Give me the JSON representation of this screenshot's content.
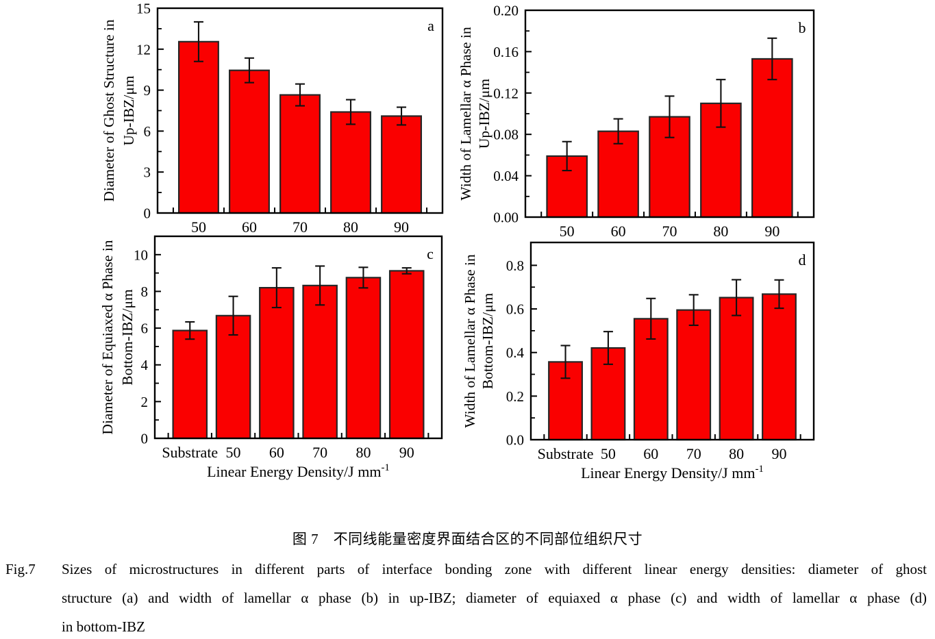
{
  "figure": {
    "caption_zh": "图 7　不同线能量密度界面结合区的不同部位组织尺寸",
    "caption_en_label": "Fig.7",
    "caption_en_lines": [
      "Sizes of microstructures in different parts of interface bonding zone with different linear energy densities: diameter of ghost",
      "structure (a) and width of lamellar α phase (b) in up-IBZ; diameter of equiaxed α phase (c) and width of lamellar α phase (d)",
      "in bottom-IBZ"
    ]
  },
  "colors": {
    "bar": "#fa0000",
    "bar_border": "#262626",
    "axis": "#000000",
    "error_bar": "#111111"
  },
  "chart_data": [
    {
      "panel": "a",
      "type": "bar",
      "ylabel": "Diameter of Ghost Structure in Up-IBZ/μm",
      "ylabel_lines": [
        "Diameter of Ghost Structure in",
        "Up-IBZ/μm"
      ],
      "categories": [
        "50",
        "60",
        "70",
        "80",
        "90"
      ],
      "values": [
        12.55,
        10.45,
        8.65,
        7.4,
        7.1
      ],
      "errors": [
        1.45,
        0.9,
        0.8,
        0.9,
        0.65
      ],
      "ylim": [
        0,
        15
      ],
      "yticks": [
        0,
        3,
        6,
        9,
        12,
        15
      ],
      "ytick_labels": [
        "0",
        "3",
        "6",
        "9",
        "12",
        "15"
      ],
      "xlabel": {
        "text": "",
        "sup": ""
      },
      "grid": false,
      "legend": false
    },
    {
      "panel": "b",
      "type": "bar",
      "ylabel": "Width of Lamellar α Phase in Up-IBZ/μm",
      "ylabel_lines": [
        "Width of Lamellar α Phase in",
        "Up-IBZ/μm"
      ],
      "categories": [
        "50",
        "60",
        "70",
        "80",
        "90"
      ],
      "values": [
        0.059,
        0.083,
        0.097,
        0.11,
        0.153
      ],
      "errors": [
        0.014,
        0.012,
        0.02,
        0.023,
        0.02
      ],
      "ylim": [
        0,
        0.2
      ],
      "yticks": [
        0,
        0.04,
        0.08,
        0.12,
        0.16,
        0.2
      ],
      "ytick_labels": [
        "0.00",
        "0.04",
        "0.08",
        "0.12",
        "0.16",
        "0.20"
      ],
      "xlabel": {
        "text": "",
        "sup": ""
      },
      "grid": false,
      "legend": false
    },
    {
      "panel": "c",
      "type": "bar",
      "ylabel": "Diameter of Equiaxed α Phase in Bottom-IBZ/μm",
      "ylabel_lines": [
        "Diameter of Equiaxed α Phase in",
        "Bottom-IBZ/μm"
      ],
      "categories": [
        "Substrate",
        "50",
        "60",
        "70",
        "80",
        "90"
      ],
      "values": [
        5.87,
        6.68,
        8.2,
        8.32,
        8.75,
        9.12
      ],
      "errors": [
        0.47,
        1.05,
        1.08,
        1.06,
        0.56,
        0.16
      ],
      "ylim": [
        0,
        11
      ],
      "yticks": [
        0,
        2,
        4,
        6,
        8,
        10
      ],
      "ytick_labels": [
        "0",
        "2",
        "4",
        "6",
        "8",
        "10"
      ],
      "xlabel": {
        "text": "Linear Energy Density/J mm",
        "sup": "-1"
      },
      "grid": false,
      "legend": false
    },
    {
      "panel": "d",
      "type": "bar",
      "ylabel": "Width of Lamellar α Phase in Bottom-IBZ/μm",
      "ylabel_lines": [
        "Width of Lamellar α Phase in",
        "Bottom-IBZ/μm"
      ],
      "categories": [
        "Substrate",
        "50",
        "60",
        "70",
        "80",
        "90"
      ],
      "values": [
        0.357,
        0.421,
        0.555,
        0.595,
        0.652,
        0.668
      ],
      "errors": [
        0.075,
        0.075,
        0.093,
        0.07,
        0.082,
        0.065
      ],
      "ylim": [
        0,
        0.905
      ],
      "yticks": [
        0,
        0.2,
        0.4,
        0.6,
        0.8
      ],
      "ytick_labels": [
        "0.0",
        "0.2",
        "0.4",
        "0.6",
        "0.8"
      ],
      "xlabel": {
        "text": "Linear Energy Density/J mm",
        "sup": "-1"
      },
      "grid": false,
      "legend": false
    }
  ]
}
